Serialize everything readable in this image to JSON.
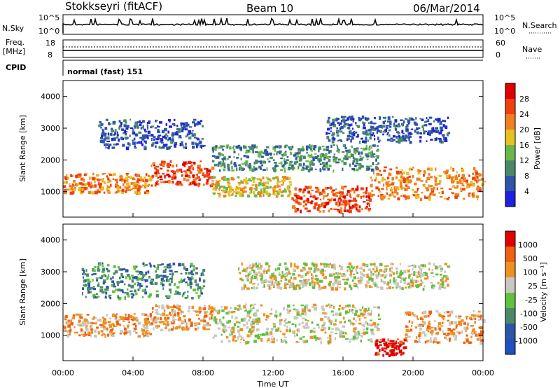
{
  "header": {
    "station": "Stokkseyri (fitACF)",
    "beam": "Beam 10",
    "date": "06/Mar/2014"
  },
  "panels": {
    "nsky_label": "N.Sky",
    "nsearch_label": "N.Search",
    "nsky_ticks": [
      "10^5",
      "10^0"
    ],
    "freq_label_1": "Freq.",
    "freq_label_2": "[MHz]",
    "freq_ticks": [
      "18",
      "8"
    ],
    "nave_label": "Nave",
    "nave_ticks": [
      "60",
      "0"
    ],
    "cpid_label": "CPID",
    "cpid_value": "normal (fast) 151"
  },
  "colors": {
    "power": [
      "#2020e0",
      "#2e56a6",
      "#4a8a6a",
      "#6ab84a",
      "#e8c020",
      "#f08020",
      "#f04010",
      "#e00000"
    ],
    "velocity": [
      "#2050c0",
      "#2e56a6",
      "#4a8a6a",
      "#60c040",
      "#c8c8c0",
      "#f09020",
      "#f06010",
      "#e00000"
    ]
  },
  "chart_data": [
    {
      "type": "heatmap",
      "name": "power",
      "ylabel": "Slant Range [km]",
      "yticks": [
        "4000",
        "3000",
        "2000",
        "1000"
      ],
      "ylim": [
        200,
        4500
      ],
      "xlim_hours": [
        0,
        24
      ],
      "colorbar_label": "Power [dB]",
      "colorbar_ticks": [
        "28",
        "24",
        "20",
        "16",
        "12",
        "8",
        "4"
      ],
      "bands": [
        {
          "t0": 0.0,
          "t1": 5.0,
          "r0": 1000,
          "r1": 1600,
          "level": 5
        },
        {
          "t0": 5.0,
          "t1": 8.5,
          "r0": 1200,
          "r1": 2000,
          "level": 6
        },
        {
          "t0": 8.5,
          "t1": 13.0,
          "r0": 900,
          "r1": 1500,
          "level": 4
        },
        {
          "t0": 13.0,
          "t1": 17.5,
          "r0": 400,
          "r1": 1200,
          "level": 6
        },
        {
          "t0": 17.5,
          "t1": 24.0,
          "r0": 800,
          "r1": 1800,
          "level": 5
        },
        {
          "t0": 2.0,
          "t1": 8.0,
          "r0": 2400,
          "r1": 3300,
          "level": 1
        },
        {
          "t0": 8.5,
          "t1": 18.0,
          "r0": 1700,
          "r1": 2500,
          "level": 2
        },
        {
          "t0": 15.0,
          "t1": 22.0,
          "r0": 2600,
          "r1": 3400,
          "level": 1
        }
      ]
    },
    {
      "type": "heatmap",
      "name": "velocity",
      "ylabel": "Slant Range [km]",
      "yticks": [
        "4000",
        "3000",
        "2000",
        "1000"
      ],
      "ylim": [
        200,
        4500
      ],
      "xlim_hours": [
        0,
        24
      ],
      "colorbar_label": "Velocity [m s⁻¹]",
      "colorbar_ticks": [
        "1000",
        "500",
        "100",
        "25",
        "-25",
        "-100",
        "-500",
        "-1000"
      ],
      "bands": [
        {
          "t0": 0.0,
          "t1": 5.0,
          "r0": 1000,
          "r1": 1700,
          "level": 5
        },
        {
          "t0": 5.0,
          "t1": 8.5,
          "r0": 1200,
          "r1": 2000,
          "level": 5
        },
        {
          "t0": 8.5,
          "t1": 18.0,
          "r0": 800,
          "r1": 2000,
          "level": 4
        },
        {
          "t0": 17.8,
          "t1": 19.5,
          "r0": 400,
          "r1": 900,
          "level": 7
        },
        {
          "t0": 19.5,
          "t1": 24.0,
          "r0": 800,
          "r1": 1800,
          "level": 5
        },
        {
          "t0": 1.0,
          "t1": 8.0,
          "r0": 2200,
          "r1": 3300,
          "level": 2
        },
        {
          "t0": 10.0,
          "t1": 22.0,
          "r0": 2500,
          "r1": 3300,
          "level": 4
        }
      ]
    }
  ],
  "xaxis": {
    "ticks": [
      "00:00",
      "04:00",
      "08:00",
      "12:00",
      "16:00",
      "20:00",
      "00:00"
    ],
    "label": "Time UT"
  }
}
